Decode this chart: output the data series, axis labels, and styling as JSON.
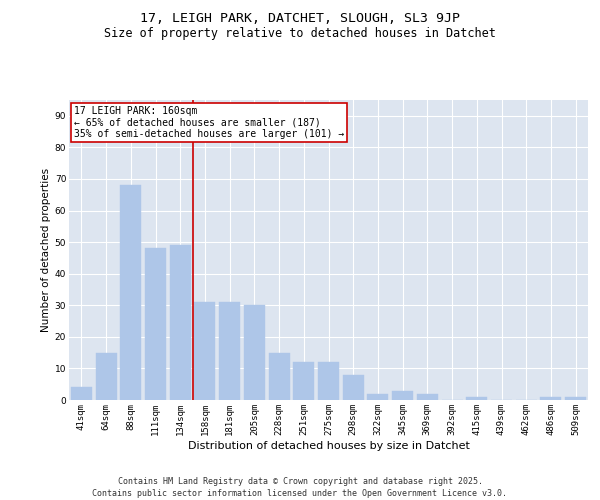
{
  "title": "17, LEIGH PARK, DATCHET, SLOUGH, SL3 9JP",
  "subtitle": "Size of property relative to detached houses in Datchet",
  "xlabel": "Distribution of detached houses by size in Datchet",
  "ylabel": "Number of detached properties",
  "categories": [
    "41sqm",
    "64sqm",
    "88sqm",
    "111sqm",
    "134sqm",
    "158sqm",
    "181sqm",
    "205sqm",
    "228sqm",
    "251sqm",
    "275sqm",
    "298sqm",
    "322sqm",
    "345sqm",
    "369sqm",
    "392sqm",
    "415sqm",
    "439sqm",
    "462sqm",
    "486sqm",
    "509sqm"
  ],
  "values": [
    4,
    15,
    68,
    48,
    49,
    31,
    31,
    30,
    15,
    12,
    12,
    8,
    2,
    3,
    2,
    0,
    1,
    0,
    0,
    1,
    1
  ],
  "bar_color": "#aec6e8",
  "bar_edge_color": "#aec6e8",
  "vline_index": 5,
  "vline_color": "#cc0000",
  "annotation_text": "17 LEIGH PARK: 160sqm\n← 65% of detached houses are smaller (187)\n35% of semi-detached houses are larger (101) →",
  "annotation_box_color": "#ffffff",
  "annotation_box_edge": "#cc0000",
  "ylim": [
    0,
    95
  ],
  "yticks": [
    0,
    10,
    20,
    30,
    40,
    50,
    60,
    70,
    80,
    90
  ],
  "background_color": "#dde5f0",
  "grid_color": "#ffffff",
  "footer": "Contains HM Land Registry data © Crown copyright and database right 2025.\nContains public sector information licensed under the Open Government Licence v3.0.",
  "title_fontsize": 9.5,
  "subtitle_fontsize": 8.5,
  "xlabel_fontsize": 8,
  "ylabel_fontsize": 7.5,
  "tick_fontsize": 6.5,
  "annotation_fontsize": 7,
  "footer_fontsize": 6
}
